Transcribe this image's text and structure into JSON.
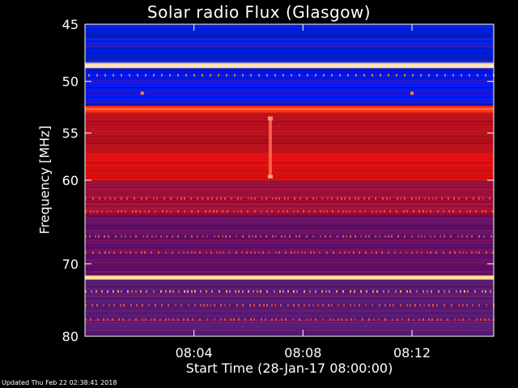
{
  "chart_data": {
    "type": "heatmap",
    "title": "Solar radio Flux (Glasgow)",
    "xlabel": "Start Time (28-Jan-17 08:00:00)",
    "ylabel": "Frequency [MHz]",
    "x_ticks": [
      {
        "minutes": 4,
        "label": "08:04"
      },
      {
        "minutes": 8,
        "label": "08:08"
      },
      {
        "minutes": 12,
        "label": "08:12"
      }
    ],
    "xlim_minutes": [
      0,
      15
    ],
    "y_ticks": [
      {
        "mhz": 45,
        "label": "45"
      },
      {
        "mhz": 50,
        "label": "50"
      },
      {
        "mhz": 55,
        "label": "55"
      },
      {
        "mhz": 60,
        "label": "60"
      },
      {
        "mhz": 70,
        "label": "70"
      },
      {
        "mhz": 80,
        "label": "80"
      }
    ],
    "ylim_mhz": [
      45,
      80
    ],
    "y_scale": "log",
    "grid": false,
    "colormap": [
      "#00008b",
      "#0000ff",
      "#7f1f7f",
      "#c01010",
      "#ff2000",
      "#ffa060",
      "#ffffd0"
    ],
    "bands": [
      {
        "from_mhz": 45,
        "to_mhz": 48.3,
        "color": "#0020e0"
      },
      {
        "from_mhz": 48.3,
        "to_mhz": 48.8,
        "color": "#ffd6a0"
      },
      {
        "from_mhz": 48.8,
        "to_mhz": 52.3,
        "color": "#0018f0"
      },
      {
        "from_mhz": 52.3,
        "to_mhz": 53.0,
        "color": "#ff3010"
      },
      {
        "from_mhz": 53.0,
        "to_mhz": 57.0,
        "color": "#b8101e"
      },
      {
        "from_mhz": 57.0,
        "to_mhz": 60.0,
        "color": "#e01010"
      },
      {
        "from_mhz": 60.0,
        "to_mhz": 64.0,
        "color": "#a0103c"
      },
      {
        "from_mhz": 64.0,
        "to_mhz": 71.5,
        "color": "#62106a"
      },
      {
        "from_mhz": 71.5,
        "to_mhz": 72.1,
        "color": "#ffc080"
      },
      {
        "from_mhz": 72.1,
        "to_mhz": 80.0,
        "color": "#581a78"
      }
    ],
    "features": [
      {
        "kind": "interference_line",
        "mhz": 48.6,
        "color": "#ffe6c0"
      },
      {
        "kind": "interference_line",
        "mhz": 52.6,
        "color": "#ff6040"
      },
      {
        "kind": "interference_line",
        "mhz": 71.8,
        "color": "#ffe0a0"
      },
      {
        "kind": "burst",
        "minutes": 6.8,
        "from_mhz": 53.5,
        "to_mhz": 59.6,
        "color": "#ff7050"
      },
      {
        "kind": "spot",
        "minutes": 2.1,
        "mhz": 51.1,
        "color": "#ff8040"
      },
      {
        "kind": "spot",
        "minutes": 12.0,
        "mhz": 51.1,
        "color": "#ff8040"
      }
    ]
  },
  "footer": {
    "updated": "Updated Thu Feb 22 02:38:41 2018"
  }
}
